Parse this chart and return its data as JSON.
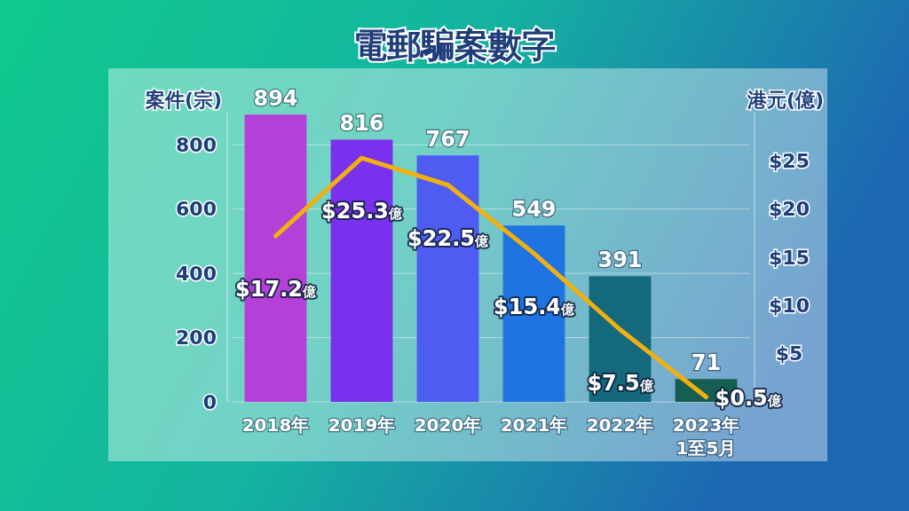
{
  "chart_data": {
    "type": "bar",
    "title": "電郵騙案數字",
    "ylabel": "案件(宗)",
    "y2label": "港元(億)",
    "categories": [
      "2018年",
      "2019年",
      "2020年",
      "2021年",
      "2022年",
      "2023年\n1至5月"
    ],
    "series": [
      {
        "colors": [
          "#b540d8",
          "#7b30ee",
          "#4f5cf2",
          "#1f74e2",
          "#146a7c",
          "#165e52"
        ],
        "values": [
          894,
          816,
          767,
          549,
          391,
          71
        ]
      },
      {
        "type": "line",
        "axis": "y2",
        "color": "#f2b010",
        "values": [
          17.2,
          25.3,
          22.5,
          15.4,
          7.5,
          0.5
        ],
        "value_labels": [
          "$17.2億",
          "$25.3億",
          "$22.5億",
          "$15.4億",
          "$7.5億",
          "$0.5億"
        ]
      }
    ],
    "ylim": [
      0,
      900
    ],
    "yticks": [
      0,
      200,
      400,
      600,
      800
    ],
    "y2lim": [
      0,
      30
    ],
    "y2ticks": [
      {
        "value": 5,
        "label": "$5"
      },
      {
        "value": 10,
        "label": "$10"
      },
      {
        "value": 15,
        "label": "$15"
      },
      {
        "value": 20,
        "label": "$20"
      },
      {
        "value": 25,
        "label": "$25"
      }
    ],
    "grid": true,
    "data_labels": true
  }
}
